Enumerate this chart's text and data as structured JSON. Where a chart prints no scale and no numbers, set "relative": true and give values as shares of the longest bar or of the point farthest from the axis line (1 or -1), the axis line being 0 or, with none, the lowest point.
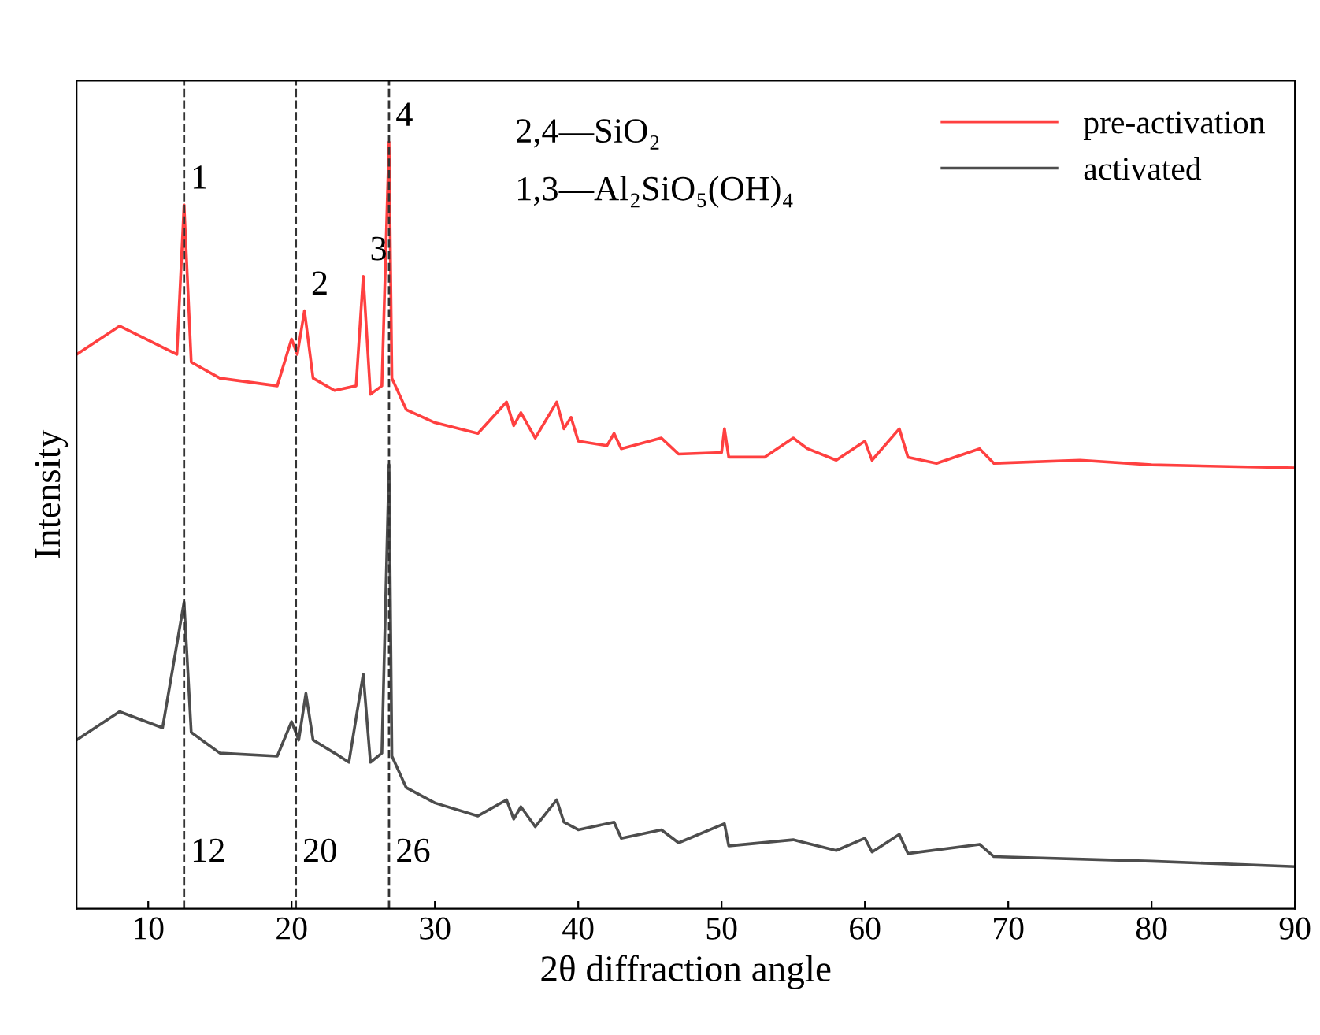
{
  "chart_data": {
    "type": "line",
    "relative": true,
    "xlabel": "2θ diffraction angle",
    "ylabel": "Intensity",
    "xlim": [
      5,
      90
    ],
    "xticks": [
      10,
      20,
      30,
      40,
      50,
      60,
      70,
      80,
      90
    ],
    "grid": false,
    "legend": "top right",
    "tick_labels": "x",
    "series": [
      {
        "name": "pre-activation",
        "color": "#ff4040",
        "x": [
          5,
          8,
          12,
          12.5,
          13,
          15,
          19,
          20,
          20.4,
          20.9,
          21.5,
          23,
          24.5,
          25,
          25.5,
          26.3,
          26.8,
          27,
          28,
          30,
          33,
          35,
          35.5,
          36,
          37,
          38.5,
          39,
          39.5,
          40,
          42,
          42.5,
          43,
          45.8,
          47,
          50,
          50.2,
          50.5,
          53,
          55,
          56,
          58,
          60,
          60.5,
          62.4,
          63,
          65,
          68,
          69,
          75,
          80,
          90
        ],
        "values": [
          0.723,
          0.76,
          0.723,
          0.918,
          0.713,
          0.692,
          0.682,
          0.743,
          0.723,
          0.78,
          0.692,
          0.676,
          0.682,
          0.825,
          0.671,
          0.682,
          1.0,
          0.692,
          0.651,
          0.634,
          0.62,
          0.661,
          0.63,
          0.647,
          0.614,
          0.661,
          0.626,
          0.641,
          0.61,
          0.604,
          0.62,
          0.6,
          0.614,
          0.593,
          0.595,
          0.626,
          0.589,
          0.589,
          0.614,
          0.6,
          0.585,
          0.61,
          0.585,
          0.626,
          0.589,
          0.581,
          0.6,
          0.581,
          0.585,
          0.579,
          0.575
        ]
      },
      {
        "name": "activated",
        "color": "#4d4d4d",
        "x": [
          5,
          8,
          11,
          12.5,
          13,
          15,
          19,
          20,
          20.5,
          21,
          21.5,
          23,
          24,
          25,
          25.5,
          26.3,
          26.8,
          27,
          28,
          30,
          33,
          35,
          35.5,
          36,
          37,
          38.5,
          39,
          40,
          42.5,
          43,
          45.8,
          47,
          50.2,
          50.5,
          55,
          58,
          60,
          60.5,
          62.4,
          63,
          68,
          69,
          80,
          90
        ],
        "values": [
          0.22,
          0.257,
          0.236,
          0.4,
          0.23,
          0.203,
          0.199,
          0.244,
          0.22,
          0.281,
          0.22,
          0.203,
          0.191,
          0.306,
          0.191,
          0.203,
          0.579,
          0.199,
          0.158,
          0.138,
          0.121,
          0.142,
          0.117,
          0.133,
          0.107,
          0.142,
          0.113,
          0.103,
          0.113,
          0.092,
          0.103,
          0.086,
          0.111,
          0.082,
          0.09,
          0.076,
          0.092,
          0.074,
          0.097,
          0.072,
          0.084,
          0.068,
          0.062,
          0.055
        ]
      }
    ],
    "ref_lines": [
      {
        "axis": "x",
        "value": 12.5,
        "line_style": "dashed",
        "color": "#333333"
      },
      {
        "axis": "x",
        "value": 20.3,
        "line_style": "dashed",
        "color": "#333333"
      },
      {
        "axis": "x",
        "value": 26.8,
        "line_style": "dashed",
        "color": "#333333"
      }
    ],
    "annotations": [
      {
        "text": "12",
        "x": 12.5,
        "y": 0.04
      },
      {
        "text": "20",
        "x": 20.3,
        "y": 0.04
      },
      {
        "text": "26",
        "x": 26.8,
        "y": 0.04
      },
      {
        "text": "1",
        "x": 12.5,
        "y": 0.918
      },
      {
        "text": "2",
        "x": 20.9,
        "y": 0.78
      },
      {
        "text": "3",
        "x": 25,
        "y": 0.825
      },
      {
        "text": "4",
        "x": 26.8,
        "y": 1.0
      },
      "2,4—SiO₂",
      "1,3—Al₂SiO₅(OH)₄"
    ]
  }
}
